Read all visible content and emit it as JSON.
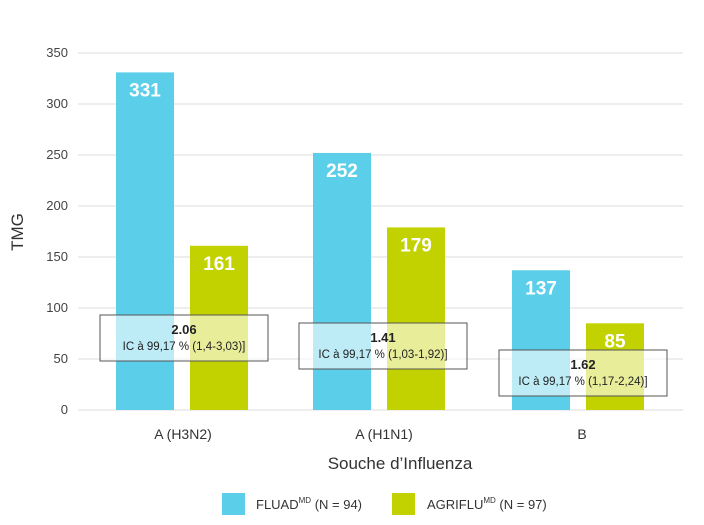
{
  "chart_data": {
    "type": "bar",
    "categories": [
      "A (H3N2)",
      "A (H1N1)",
      "B"
    ],
    "series": [
      {
        "name": "FLUAD",
        "name_sup": "MD",
        "name_suffix": " (N = 94)",
        "color": "#5bcfea",
        "values": [
          331,
          252,
          137
        ]
      },
      {
        "name": "AGRIFLU",
        "name_sup": "MD",
        "name_suffix": " (N = 97)",
        "color": "#c2d200",
        "values": [
          161,
          179,
          85
        ]
      }
    ],
    "xlabel": "Souche d’Influenza",
    "ylabel": "TMG",
    "ylim": [
      0,
      350
    ],
    "yticks": [
      0,
      50,
      100,
      150,
      200,
      250,
      300,
      350
    ],
    "grid": true,
    "legend_position": "bottom",
    "annotations": [
      {
        "category": "A (H3N2)",
        "ratio": "2.06",
        "ci": "IC à 99,17 % (1,4-3,03)]"
      },
      {
        "category": "A (H1N1)",
        "ratio": "1.41",
        "ci": "IC à 99,17 % (1,03-1,92)]"
      },
      {
        "category": "B",
        "ratio": "1.62",
        "ci": "IC à 99,17 % (1,17-2,24)]"
      }
    ]
  }
}
